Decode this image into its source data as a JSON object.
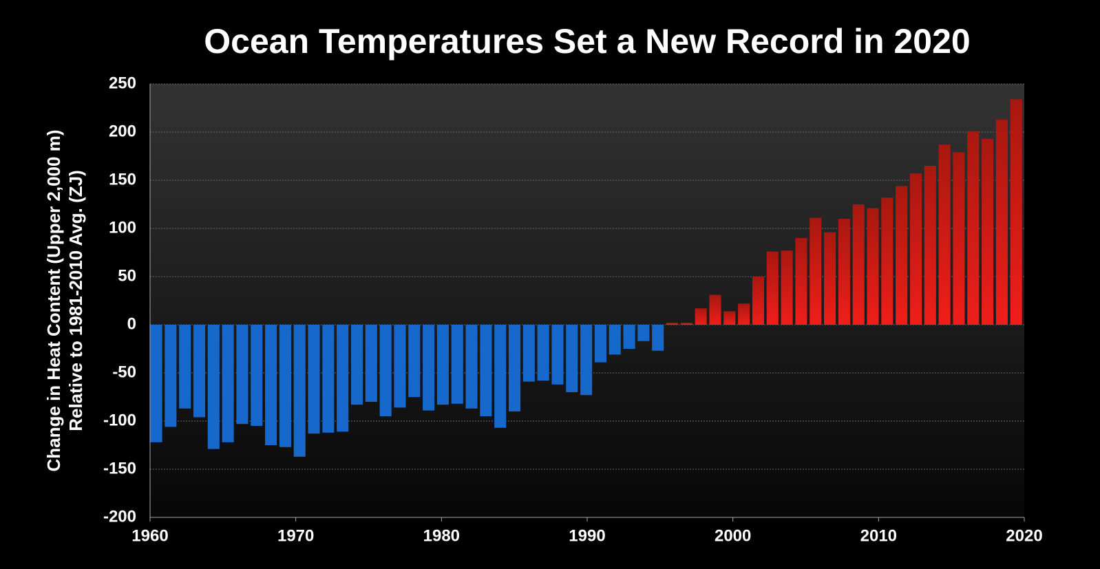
{
  "chart_data": {
    "type": "bar",
    "title": "Ocean Temperatures Set a New Record in 2020",
    "y_label": [
      "Change in Heat Content (Upper 2,000 m)",
      "Relative to 1981-2010 Avg. (ZJ)"
    ],
    "x": [
      1960,
      1961,
      1962,
      1963,
      1964,
      1965,
      1966,
      1967,
      1968,
      1969,
      1970,
      1971,
      1972,
      1973,
      1974,
      1975,
      1976,
      1977,
      1978,
      1979,
      1980,
      1981,
      1982,
      1983,
      1984,
      1985,
      1986,
      1987,
      1988,
      1989,
      1990,
      1991,
      1992,
      1993,
      1994,
      1995,
      1996,
      1997,
      1998,
      1999,
      2000,
      2001,
      2002,
      2003,
      2004,
      2005,
      2006,
      2007,
      2008,
      2009,
      2010,
      2011,
      2012,
      2013,
      2014,
      2015,
      2016,
      2017,
      2018,
      2019,
      2020
    ],
    "values": [
      -122,
      -106,
      -87,
      -96,
      -129,
      -122,
      -103,
      -105,
      -125,
      -127,
      -137,
      -113,
      -112,
      -111,
      -83,
      -80,
      -95,
      -86,
      -75,
      -89,
      -83,
      -82,
      -87,
      -95,
      -107,
      -90,
      -59,
      -58,
      -62,
      -70,
      -73,
      -39,
      -31,
      -25,
      -17,
      -27,
      2,
      2,
      17,
      31,
      14,
      22,
      50,
      76,
      77,
      90,
      111,
      96,
      110,
      125,
      121,
      132,
      144,
      157,
      165,
      187,
      179,
      201,
      193,
      213,
      234
    ],
    "colors": {
      "negative": "#1668cc",
      "positive": "#f01e1a"
    },
    "xlim": [
      1960,
      2020
    ],
    "xticks": [
      1960,
      1970,
      1980,
      1990,
      2000,
      2010,
      2020
    ],
    "ylim": [
      -200,
      250
    ],
    "yticks": [
      250,
      200,
      150,
      100,
      50,
      0,
      -50,
      -100,
      -150,
      -200
    ],
    "grid": true
  }
}
